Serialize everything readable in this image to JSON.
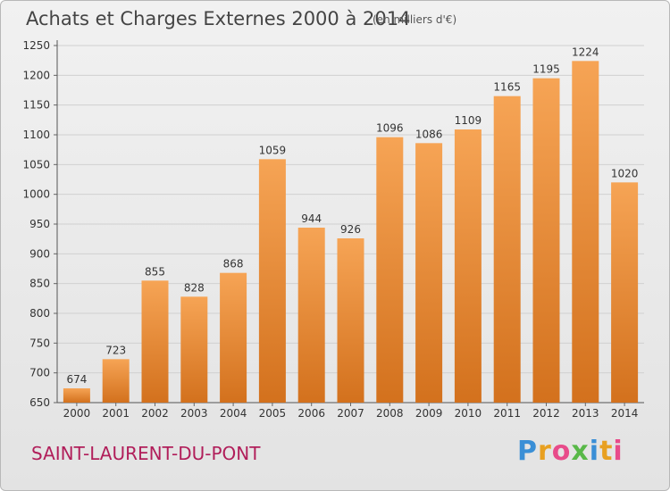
{
  "header": {
    "title": "Achats et Charges Externes 2000 à 2014",
    "subtitle": "(en milliers d'€)"
  },
  "footer": {
    "commune": "SAINT-LAURENT-DU-PONT",
    "logo_text": "Proxiti"
  },
  "colors": {
    "bar_top": "#f6a455",
    "bar_bottom": "#d3711d",
    "grid": "#d0d0d0",
    "commune_text": "#b11e5a"
  },
  "chart_data": {
    "type": "bar",
    "categories": [
      "2000",
      "2001",
      "2002",
      "2003",
      "2004",
      "2005",
      "2006",
      "2007",
      "2008",
      "2009",
      "2010",
      "2011",
      "2012",
      "2013",
      "2014"
    ],
    "values": [
      674,
      723,
      855,
      828,
      868,
      1059,
      944,
      926,
      1096,
      1086,
      1109,
      1165,
      1195,
      1224,
      1020
    ],
    "title": "Achats et Charges Externes 2000 à 2014",
    "ylim": [
      650,
      1250
    ],
    "yticks": [
      650,
      700,
      750,
      800,
      850,
      900,
      950,
      1000,
      1050,
      1100,
      1150,
      1200,
      1250
    ],
    "grid": true
  }
}
